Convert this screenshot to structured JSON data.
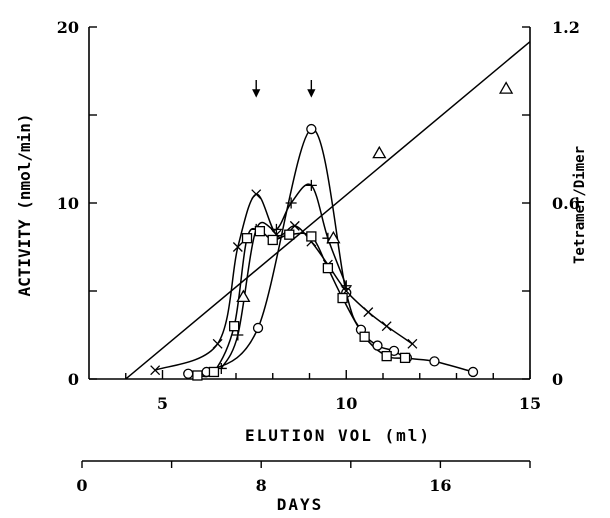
{
  "chart_data": {
    "type": "line",
    "title": "",
    "xlabel": "ELUTION VOL (ml)",
    "ylabel": "ACTIVITY (nmol/min)",
    "y2label": "Tetramer/Dimer",
    "x2label": "DAYS",
    "xlim": [
      3,
      15
    ],
    "ylim": [
      0,
      20
    ],
    "y2lim": [
      0,
      1.2
    ],
    "x2lim": [
      0,
      20
    ],
    "x_ticks": [
      5,
      10,
      15
    ],
    "y_ticks": [
      0,
      10,
      20
    ],
    "y2_ticks": [
      0,
      0.6,
      1.2
    ],
    "x2_ticks": [
      0,
      8,
      16
    ],
    "x_tick_labels": [
      "5",
      "10",
      "15"
    ],
    "y_tick_labels": [
      "0",
      "10",
      "20"
    ],
    "y2_tick_labels": [
      "0",
      "0.6",
      "1.2"
    ],
    "x2_tick_labels": [
      "0",
      "8",
      "16"
    ],
    "arrows_x": [
      7.55,
      9.05
    ],
    "series": [
      {
        "marker": "circle",
        "x": [
          5.7,
          6.2,
          7.6,
          9.05,
          10.0,
          10.4,
          10.85,
          11.3,
          11.65,
          12.4,
          13.45
        ],
        "y": [
          0.3,
          0.4,
          2.9,
          14.2,
          4.9,
          2.8,
          1.9,
          1.6,
          1.2,
          1.0,
          0.4
        ]
      },
      {
        "marker": "cross",
        "x": [
          4.8,
          6.5,
          7.05,
          7.55,
          8.1,
          8.6,
          9.05,
          9.5,
          10.0,
          10.6,
          11.1,
          11.8
        ],
        "y": [
          0.5,
          2.0,
          7.5,
          10.5,
          8.2,
          8.7,
          7.8,
          6.5,
          5.0,
          3.8,
          3.0,
          2.0
        ]
      },
      {
        "marker": "plus",
        "x": [
          6.6,
          7.05,
          7.55,
          8.1,
          8.5,
          9.05,
          9.5,
          10.0
        ],
        "y": [
          0.6,
          2.5,
          8.5,
          8.5,
          10.0,
          11.0,
          8.0,
          5.3
        ]
      },
      {
        "marker": "square",
        "x": [
          5.95,
          6.4,
          6.95,
          7.3,
          7.65,
          8.0,
          8.45,
          9.05,
          9.5,
          9.9,
          10.5,
          11.1,
          11.6
        ],
        "y": [
          0.2,
          0.4,
          3.0,
          8.0,
          8.4,
          7.9,
          8.2,
          8.1,
          6.3,
          4.6,
          2.4,
          1.3,
          1.2
        ]
      },
      {
        "marker": "triangle",
        "axis": "y2",
        "x": [
          7.2,
          9.65,
          10.9,
          14.35
        ],
        "y": [
          0.28,
          0.48,
          0.77,
          0.99
        ]
      }
    ],
    "regression_line": {
      "axis": "y2",
      "x": [
        4.0,
        15.0
      ],
      "y": [
        0.0,
        1.15
      ]
    }
  }
}
